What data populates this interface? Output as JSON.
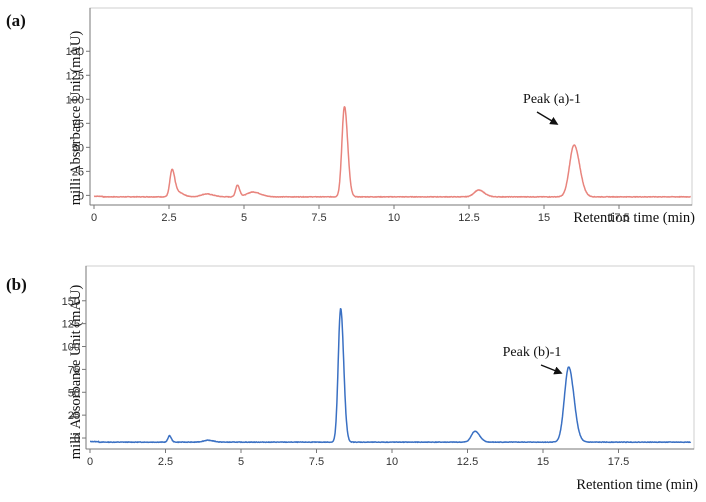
{
  "chart_data": [
    {
      "type": "line",
      "panel_label": "(a)",
      "ylabel": "milli Absorbance Unit (mAU)",
      "xlabel": "Retention time (min)",
      "xlim": [
        0,
        19.9
      ],
      "ylim": [
        -10,
        195
      ],
      "x_ticks": [
        "0",
        "2.5",
        "5",
        "7.5",
        "10",
        "12.5",
        "15",
        "17.5"
      ],
      "y_ticks": [
        "0",
        "25",
        "50",
        "75",
        "100",
        "125",
        "150"
      ],
      "series_color": "#e8847d",
      "baseline": -1.5,
      "peaks": [
        {
          "x": 2.6,
          "height": 26,
          "width": 0.07
        },
        {
          "x": 2.78,
          "height": 5,
          "width": 0.15
        },
        {
          "x": 3.75,
          "height": 3,
          "width": 0.18
        },
        {
          "x": 4.78,
          "height": 12,
          "width": 0.06
        },
        {
          "x": 5.3,
          "height": 5,
          "width": 0.2
        },
        {
          "x": 8.35,
          "height": 94,
          "width": 0.085
        },
        {
          "x": 12.82,
          "height": 7,
          "width": 0.15
        },
        {
          "x": 16.0,
          "height": 54,
          "width": 0.15
        }
      ],
      "annotation": {
        "text": "Peak (a)-1",
        "x": 16.0,
        "y": 54
      }
    },
    {
      "type": "line",
      "panel_label": "(b)",
      "ylabel": "milli Absorbance Unit (mAU)",
      "xlabel": "Retention time (min)",
      "xlim": [
        0,
        19.9
      ],
      "ylim": [
        -12,
        188
      ],
      "x_ticks": [
        "0",
        "2.5",
        "5",
        "7.5",
        "10",
        "12.5",
        "15",
        "17.5"
      ],
      "y_ticks": [
        "0",
        "25",
        "50",
        "75",
        "100",
        "125",
        "150"
      ],
      "series_color": "#3a70c3",
      "baseline": -4.5,
      "peaks": [
        {
          "x": 2.63,
          "height": 7,
          "width": 0.05
        },
        {
          "x": 3.9,
          "height": 2,
          "width": 0.15
        },
        {
          "x": 8.3,
          "height": 146,
          "width": 0.08
        },
        {
          "x": 12.75,
          "height": 12,
          "width": 0.12
        },
        {
          "x": 15.85,
          "height": 82,
          "width": 0.14
        }
      ],
      "annotation": {
        "text": "Peak (b)-1",
        "x": 15.85,
        "y": 82
      }
    }
  ]
}
